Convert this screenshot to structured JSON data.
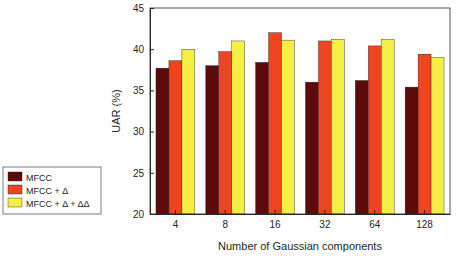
{
  "chart_data": {
    "type": "bar",
    "x_label": "Number of Gaussian components",
    "y_label": "UAR (%)",
    "categories": [
      "4",
      "8",
      "16",
      "32",
      "64",
      "128"
    ],
    "series": [
      {
        "name": "MFCC",
        "color": "#5c0a0a",
        "values": [
          37.7,
          38.0,
          38.4,
          36.0,
          36.2,
          35.4
        ]
      },
      {
        "name": "MFCC + Δ",
        "color": "#ee4420",
        "values": [
          38.6,
          39.7,
          42.0,
          41.0,
          40.4,
          39.4
        ]
      },
      {
        "name": "MFCC + Δ + ΔΔ",
        "color": "#f5ee45",
        "values": [
          40.0,
          41.0,
          41.1,
          41.2,
          41.2,
          39.0
        ]
      }
    ],
    "ylim": [
      20,
      45
    ],
    "yticks": [
      20,
      25,
      30,
      35,
      40,
      45
    ],
    "grid": false,
    "legend": "lower left"
  }
}
